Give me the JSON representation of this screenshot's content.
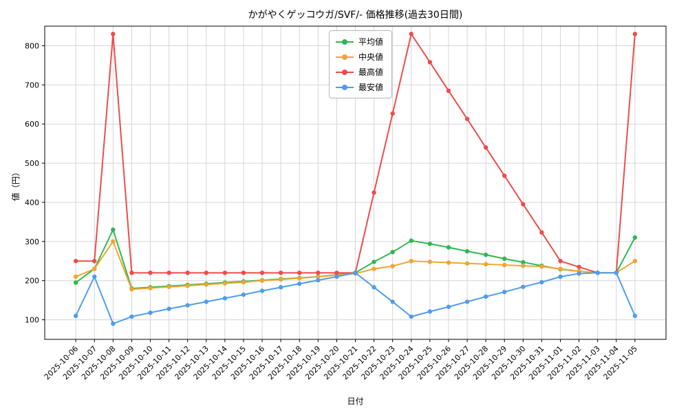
{
  "chart_data": {
    "type": "line",
    "title": "かがやくゲッコウガ/SVF/- 価格推移(過去30日間)",
    "xlabel": "日付",
    "ylabel": "値（円）",
    "ylim": [
      50,
      850
    ],
    "yticks": [
      100,
      200,
      300,
      400,
      500,
      600,
      700,
      800
    ],
    "grid": true,
    "legend_position": "top-center-inside",
    "grid_color": "#d5d5d5",
    "axis_color": "#000000",
    "categories": [
      "2025-10-06",
      "2025-10-07",
      "2025-10-08",
      "2025-10-09",
      "2025-10-10",
      "2025-10-11",
      "2025-10-12",
      "2025-10-13",
      "2025-10-14",
      "2025-10-15",
      "2025-10-16",
      "2025-10-17",
      "2025-10-18",
      "2025-10-19",
      "2025-10-20",
      "2025-10-21",
      "2025-10-22",
      "2025-10-23",
      "2025-10-24",
      "2025-10-25",
      "2025-10-26",
      "2025-10-27",
      "2025-10-28",
      "2025-10-29",
      "2025-10-30",
      "2025-10-31",
      "2025-11-01",
      "2025-11-02",
      "2025-11-03",
      "2025-11-04",
      "2025-11-05"
    ],
    "series": [
      {
        "key": "average",
        "name": "平均値",
        "color": "#2eb850",
        "values": [
          195,
          230,
          330,
          180,
          183,
          186,
          189,
          192,
          195,
          198,
          201,
          204,
          207,
          210,
          215,
          220,
          248,
          273,
          302,
          294,
          285,
          275,
          266,
          256,
          247,
          238,
          229,
          224,
          220,
          220,
          310
        ]
      },
      {
        "key": "median",
        "name": "中央値",
        "color": "#f0a532",
        "values": [
          210,
          230,
          300,
          178,
          181,
          184,
          187,
          190,
          193,
          196,
          200,
          203,
          206,
          210,
          214,
          218,
          230,
          237,
          250,
          248,
          246,
          244,
          242,
          240,
          238,
          236,
          230,
          224,
          220,
          220,
          250
        ]
      },
      {
        "key": "max",
        "name": "最高値",
        "color": "#ee4b4b",
        "values": [
          250,
          250,
          830,
          220,
          220,
          220,
          220,
          220,
          220,
          220,
          220,
          220,
          220,
          220,
          220,
          220,
          425,
          627,
          830,
          758,
          685,
          613,
          540,
          468,
          395,
          323,
          250,
          235,
          220,
          220,
          830
        ]
      },
      {
        "key": "min",
        "name": "最安値",
        "color": "#4f9cec",
        "values": [
          110,
          210,
          90,
          108,
          118,
          128,
          137,
          146,
          155,
          164,
          174,
          183,
          192,
          201,
          210,
          220,
          183,
          146,
          108,
          121,
          133,
          146,
          159,
          171,
          184,
          196,
          210,
          218,
          220,
          220,
          110
        ]
      }
    ]
  }
}
